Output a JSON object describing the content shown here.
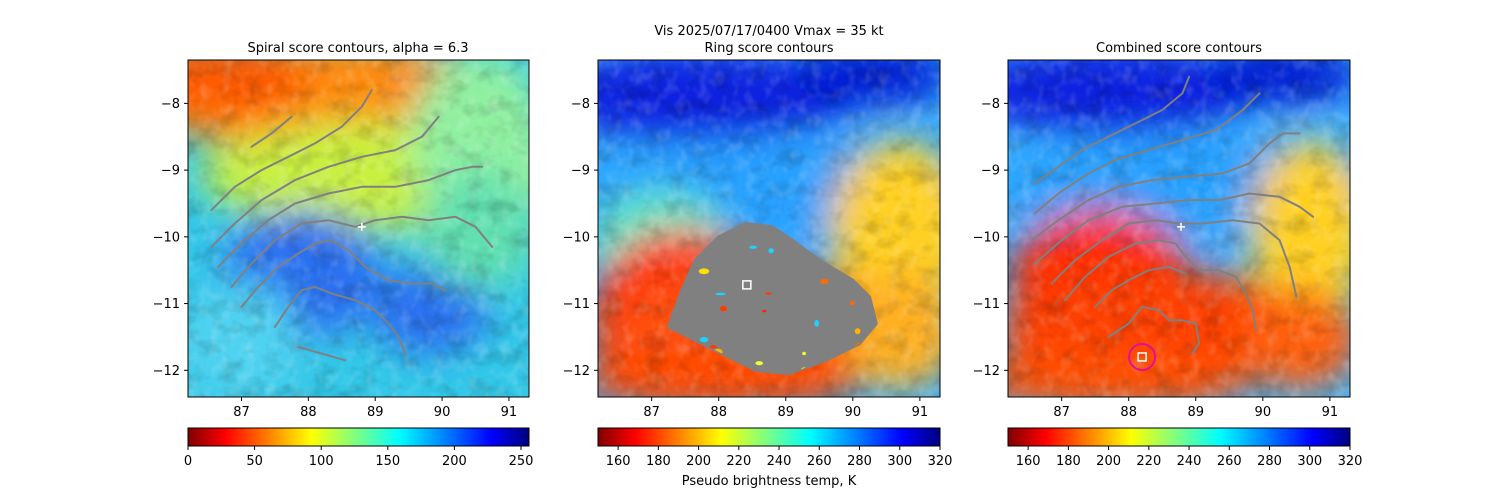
{
  "figure": {
    "suptitle": "Vis  2025/07/17/0400    Vmax = 35 kt"
  },
  "chart_data": [
    {
      "type": "heatmap",
      "title": "Spiral score contours, alpha =  6.3",
      "xlim": [
        86.2,
        91.3
      ],
      "ylim": [
        -12.4,
        -7.35
      ],
      "xticks": [
        87,
        88,
        89,
        90,
        91
      ],
      "yticks": [
        -8,
        -9,
        -10,
        -11,
        -12
      ],
      "colormap": "jet_r",
      "colorbar": {
        "ticks": [
          0,
          50,
          100,
          150,
          200,
          250
        ],
        "range": [
          0,
          256
        ],
        "label": ""
      },
      "markers": [
        {
          "kind": "plus",
          "x": 88.8,
          "y": -9.85,
          "color": "#ffffff"
        }
      ],
      "contours": [
        [
          [
            87.15,
            -8.65
          ],
          [
            87.45,
            -8.45
          ],
          [
            87.75,
            -8.2
          ]
        ],
        [
          [
            86.55,
            -9.6
          ],
          [
            86.9,
            -9.25
          ],
          [
            87.3,
            -9.0
          ],
          [
            87.7,
            -8.8
          ],
          [
            88.1,
            -8.6
          ],
          [
            88.5,
            -8.35
          ],
          [
            88.8,
            -8.05
          ],
          [
            88.95,
            -7.8
          ]
        ],
        [
          [
            86.55,
            -10.15
          ],
          [
            86.9,
            -9.8
          ],
          [
            87.3,
            -9.45
          ],
          [
            87.8,
            -9.15
          ],
          [
            88.3,
            -8.95
          ],
          [
            88.8,
            -8.8
          ],
          [
            89.3,
            -8.7
          ],
          [
            89.7,
            -8.5
          ],
          [
            89.95,
            -8.2
          ]
        ],
        [
          [
            86.65,
            -10.45
          ],
          [
            87.0,
            -10.1
          ],
          [
            87.4,
            -9.75
          ],
          [
            87.8,
            -9.5
          ],
          [
            88.3,
            -9.35
          ],
          [
            88.8,
            -9.25
          ],
          [
            89.3,
            -9.25
          ],
          [
            89.8,
            -9.15
          ],
          [
            90.2,
            -9.0
          ],
          [
            90.45,
            -8.95
          ],
          [
            90.6,
            -8.95
          ]
        ],
        [
          [
            86.85,
            -10.75
          ],
          [
            87.15,
            -10.4
          ],
          [
            87.5,
            -10.05
          ],
          [
            87.9,
            -9.8
          ],
          [
            88.3,
            -9.75
          ],
          [
            88.7,
            -9.85
          ],
          [
            89.0,
            -9.75
          ],
          [
            89.4,
            -9.7
          ],
          [
            89.8,
            -9.75
          ],
          [
            90.2,
            -9.7
          ],
          [
            90.5,
            -9.85
          ],
          [
            90.75,
            -10.15
          ]
        ],
        [
          [
            87.0,
            -11.05
          ],
          [
            87.25,
            -10.75
          ],
          [
            87.55,
            -10.45
          ],
          [
            87.85,
            -10.25
          ],
          [
            88.1,
            -10.1
          ],
          [
            88.35,
            -10.05
          ],
          [
            88.6,
            -10.2
          ],
          [
            88.85,
            -10.45
          ],
          [
            89.2,
            -10.65
          ],
          [
            89.55,
            -10.7
          ],
          [
            89.85,
            -10.7
          ],
          [
            90.05,
            -10.8
          ]
        ],
        [
          [
            87.5,
            -11.35
          ],
          [
            87.7,
            -11.05
          ],
          [
            87.9,
            -10.8
          ],
          [
            88.1,
            -10.75
          ],
          [
            88.35,
            -10.85
          ],
          [
            88.7,
            -10.95
          ],
          [
            89.0,
            -11.1
          ],
          [
            89.2,
            -11.3
          ],
          [
            89.35,
            -11.5
          ],
          [
            89.45,
            -11.75
          ]
        ],
        [
          [
            87.85,
            -11.65
          ],
          [
            88.2,
            -11.75
          ],
          [
            88.55,
            -11.85
          ]
        ]
      ]
    },
    {
      "type": "heatmap",
      "title": "Ring score contours",
      "xlim": [
        86.2,
        91.3
      ],
      "ylim": [
        -12.4,
        -7.35
      ],
      "xticks": [
        87,
        88,
        89,
        90,
        91
      ],
      "yticks": [
        -8,
        -9,
        -10,
        -11,
        -12
      ],
      "colormap": "jet_r",
      "colorbar": {
        "ticks": [
          160,
          180,
          200,
          220,
          240,
          260,
          280,
          300,
          320
        ],
        "range": [
          150,
          320
        ],
        "label": "Pseudo brightness temp, K"
      },
      "markers": [
        {
          "kind": "square",
          "x": 88.42,
          "y": -10.72,
          "color": "#ffffff"
        }
      ],
      "ring_region": [
        [
          87.25,
          -11.35
        ],
        [
          87.45,
          -10.8
        ],
        [
          87.65,
          -10.35
        ],
        [
          88.0,
          -10.0
        ],
        [
          88.4,
          -9.8
        ],
        [
          88.8,
          -9.85
        ],
        [
          89.1,
          -10.05
        ],
        [
          89.5,
          -10.35
        ],
        [
          90.0,
          -10.65
        ],
        [
          90.25,
          -10.9
        ],
        [
          90.35,
          -11.3
        ],
        [
          90.1,
          -11.6
        ],
        [
          89.6,
          -11.85
        ],
        [
          89.05,
          -12.05
        ],
        [
          88.55,
          -12.0
        ],
        [
          88.05,
          -11.75
        ],
        [
          87.55,
          -11.5
        ]
      ]
    },
    {
      "type": "heatmap",
      "title": "Combined score contours",
      "xlim": [
        86.2,
        91.3
      ],
      "ylim": [
        -12.4,
        -7.35
      ],
      "xticks": [
        87,
        88,
        89,
        90,
        91
      ],
      "yticks": [
        -8,
        -9,
        -10,
        -11,
        -12
      ],
      "colormap": "jet_r",
      "colorbar": {
        "ticks": [
          160,
          180,
          200,
          220,
          240,
          260,
          280,
          300,
          320
        ],
        "range": [
          150,
          320
        ],
        "label": ""
      },
      "markers": [
        {
          "kind": "plus",
          "x": 88.78,
          "y": -9.85,
          "color": "#ffffff"
        },
        {
          "kind": "square",
          "x": 88.2,
          "y": -11.8,
          "color": "#ffffff"
        },
        {
          "kind": "circle",
          "x": 88.2,
          "y": -11.8,
          "color": "#e0109a"
        }
      ],
      "contours": [
        [
          [
            86.6,
            -9.2
          ],
          [
            86.95,
            -8.95
          ],
          [
            87.3,
            -8.7
          ],
          [
            87.7,
            -8.5
          ],
          [
            88.1,
            -8.3
          ],
          [
            88.5,
            -8.1
          ],
          [
            88.8,
            -7.85
          ],
          [
            88.9,
            -7.6
          ]
        ],
        [
          [
            86.6,
            -9.65
          ],
          [
            86.95,
            -9.35
          ],
          [
            87.4,
            -9.05
          ],
          [
            87.8,
            -8.85
          ],
          [
            88.3,
            -8.7
          ],
          [
            88.8,
            -8.55
          ],
          [
            89.3,
            -8.4
          ],
          [
            89.7,
            -8.1
          ],
          [
            89.95,
            -7.85
          ]
        ],
        [
          [
            86.55,
            -10.05
          ],
          [
            86.95,
            -9.75
          ],
          [
            87.4,
            -9.45
          ],
          [
            87.85,
            -9.25
          ],
          [
            88.35,
            -9.15
          ],
          [
            88.85,
            -9.1
          ],
          [
            89.4,
            -9.05
          ],
          [
            89.8,
            -8.9
          ],
          [
            90.1,
            -8.6
          ],
          [
            90.3,
            -8.45
          ],
          [
            90.55,
            -8.45
          ]
        ],
        [
          [
            86.6,
            -10.4
          ],
          [
            87.0,
            -10.05
          ],
          [
            87.4,
            -9.75
          ],
          [
            87.9,
            -9.55
          ],
          [
            88.4,
            -9.5
          ],
          [
            88.9,
            -9.45
          ],
          [
            89.35,
            -9.45
          ],
          [
            89.8,
            -9.35
          ],
          [
            90.25,
            -9.4
          ],
          [
            90.55,
            -9.55
          ],
          [
            90.75,
            -9.7
          ]
        ],
        [
          [
            86.85,
            -10.7
          ],
          [
            87.2,
            -10.35
          ],
          [
            87.6,
            -10.05
          ],
          [
            88.0,
            -9.8
          ],
          [
            88.4,
            -9.75
          ],
          [
            88.75,
            -9.8
          ],
          [
            89.1,
            -9.8
          ],
          [
            89.55,
            -9.75
          ],
          [
            89.95,
            -9.8
          ],
          [
            90.25,
            -10.05
          ],
          [
            90.4,
            -10.45
          ],
          [
            90.5,
            -10.9
          ]
        ],
        [
          [
            87.05,
            -10.95
          ],
          [
            87.35,
            -10.6
          ],
          [
            87.7,
            -10.3
          ],
          [
            88.1,
            -10.1
          ],
          [
            88.45,
            -10.05
          ],
          [
            88.7,
            -10.1
          ],
          [
            88.85,
            -10.3
          ],
          [
            89.05,
            -10.5
          ],
          [
            89.35,
            -10.5
          ],
          [
            89.6,
            -10.6
          ],
          [
            89.75,
            -10.85
          ],
          [
            89.85,
            -11.1
          ],
          [
            89.9,
            -11.4
          ]
        ],
        [
          [
            87.7,
            -11.5
          ],
          [
            88.0,
            -11.3
          ],
          [
            88.2,
            -11.05
          ],
          [
            88.45,
            -11.1
          ],
          [
            88.6,
            -11.25
          ],
          [
            88.8,
            -11.25
          ],
          [
            89.0,
            -11.3
          ],
          [
            89.05,
            -11.6
          ],
          [
            88.95,
            -11.75
          ]
        ],
        [
          [
            87.5,
            -11.05
          ],
          [
            87.75,
            -10.8
          ],
          [
            88.0,
            -10.65
          ],
          [
            88.3,
            -10.5
          ],
          [
            88.6,
            -10.45
          ],
          [
            88.85,
            -10.55
          ]
        ]
      ]
    }
  ]
}
